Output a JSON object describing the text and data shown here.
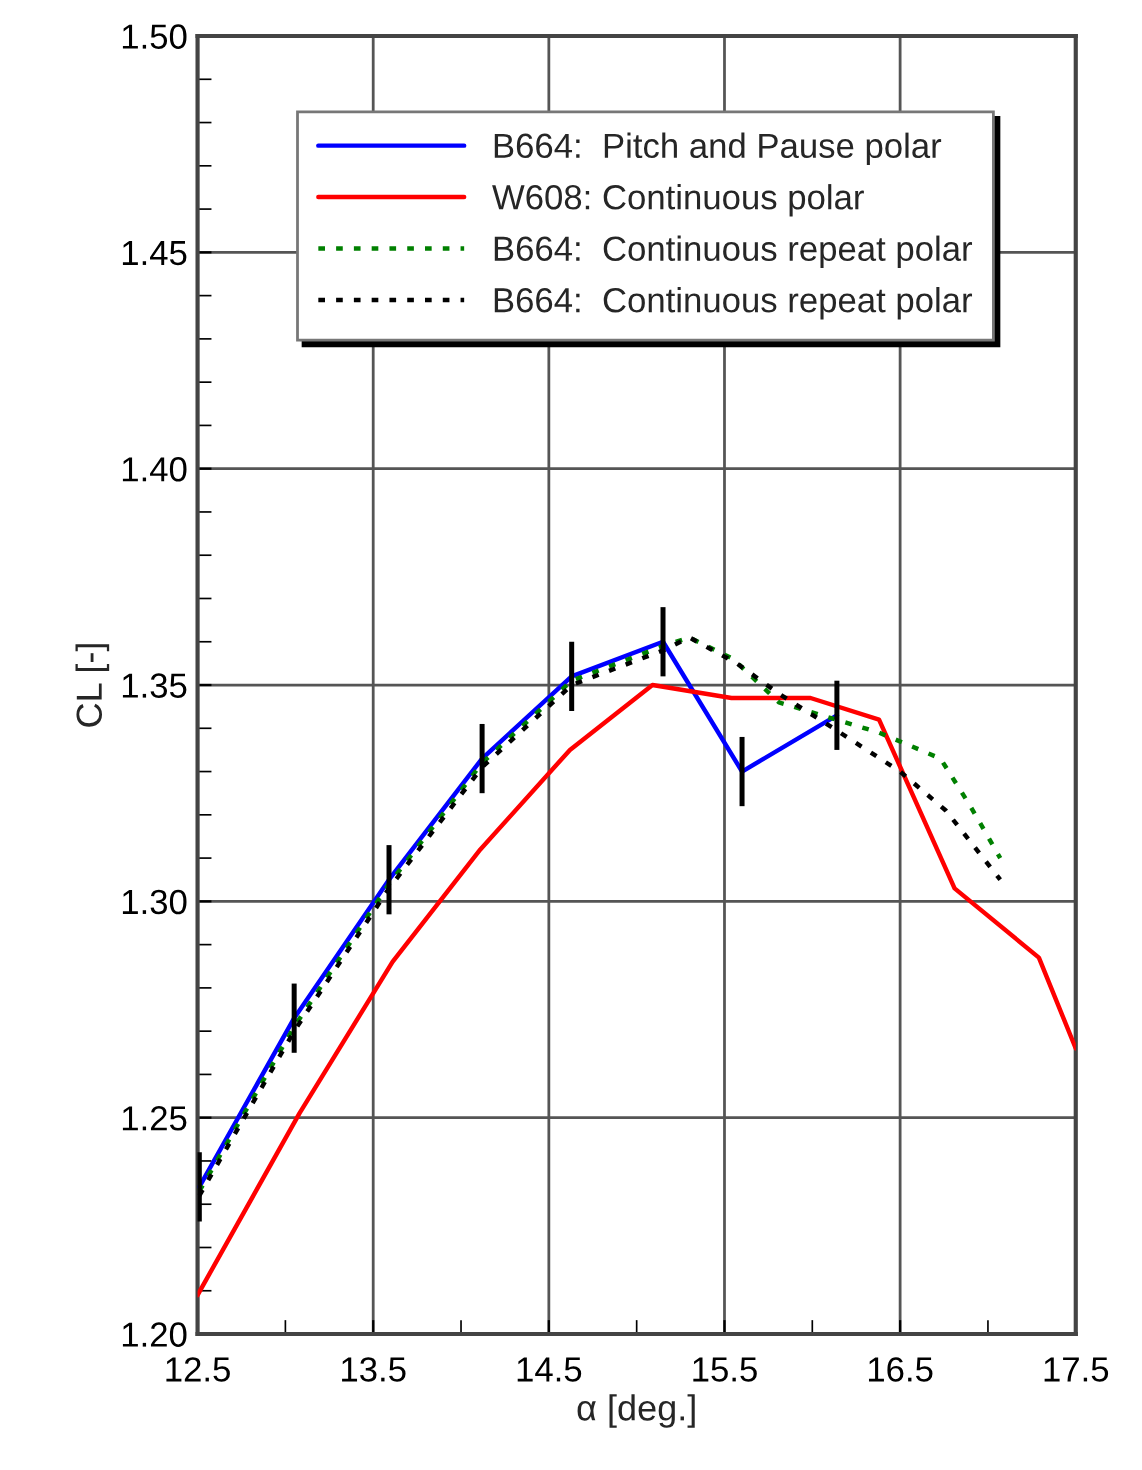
{
  "chart_data": {
    "type": "line",
    "xlabel": "α [deg.]",
    "ylabel": "CL [-]",
    "xlim": [
      12.5,
      17.5
    ],
    "ylim": [
      1.2,
      1.5
    ],
    "xticks": [
      12.5,
      {
        "value": 13.0,
        "label": null
      },
      13.5,
      {
        "value": 14.0,
        "label": null
      },
      14.5,
      {
        "value": 15.0,
        "label": null
      },
      15.5,
      {
        "value": 16.0,
        "label": null
      },
      16.5,
      {
        "value": 17.0,
        "label": null
      },
      17.5
    ],
    "yticks": [
      {
        "value": 1.2,
        "label": "1.20"
      },
      {
        "value": 1.21,
        "label": null
      },
      {
        "value": 1.22,
        "label": null
      },
      {
        "value": 1.23,
        "label": null
      },
      {
        "value": 1.24,
        "label": null
      },
      {
        "value": 1.25,
        "label": "1.25"
      },
      {
        "value": 1.26,
        "label": null
      },
      {
        "value": 1.27,
        "label": null
      },
      {
        "value": 1.28,
        "label": null
      },
      {
        "value": 1.29,
        "label": null
      },
      {
        "value": 1.3,
        "label": "1.30"
      },
      {
        "value": 1.31,
        "label": null
      },
      {
        "value": 1.32,
        "label": null
      },
      {
        "value": 1.33,
        "label": null
      },
      {
        "value": 1.34,
        "label": null
      },
      {
        "value": 1.35,
        "label": "1.35"
      },
      {
        "value": 1.36,
        "label": null
      },
      {
        "value": 1.37,
        "label": null
      },
      {
        "value": 1.38,
        "label": null
      },
      {
        "value": 1.39,
        "label": null
      },
      {
        "value": 1.4,
        "label": "1.40"
      },
      {
        "value": 1.41,
        "label": null
      },
      {
        "value": 1.42,
        "label": null
      },
      {
        "value": 1.43,
        "label": null
      },
      {
        "value": 1.44,
        "label": null
      },
      {
        "value": 1.45,
        "label": "1.45"
      },
      {
        "value": 1.46,
        "label": null
      },
      {
        "value": 1.47,
        "label": null
      },
      {
        "value": 1.48,
        "label": null
      },
      {
        "value": 1.49,
        "label": null
      },
      {
        "value": 1.5,
        "label": "1.50"
      }
    ],
    "grid": true,
    "legend": "top",
    "line_style": "solid",
    "marker": "none",
    "series": [
      {
        "name": "B664:  Pitch and Pause polar",
        "color": "#0000ff",
        "x": [
          12.51,
          13.05,
          13.59,
          14.12,
          14.63,
          15.15,
          15.6,
          16.14
        ],
        "values": [
          1.234,
          1.273,
          1.305,
          1.333,
          1.352,
          1.36,
          1.33,
          1.343
        ],
        "errors": [
          0.008,
          0.008,
          0.008,
          0.008,
          0.008,
          0.008,
          0.008,
          0.008
        ]
      },
      {
        "name": "W608: Continuous polar",
        "color": "#ff0000",
        "x": [
          12.5,
          13.08,
          13.61,
          14.11,
          14.62,
          15.09,
          15.54,
          15.99,
          16.38,
          16.81,
          17.29,
          17.5
        ],
        "values": [
          1.209,
          1.251,
          1.286,
          1.312,
          1.335,
          1.35,
          1.347,
          1.347,
          1.342,
          1.303,
          1.287,
          1.266
        ]
      },
      {
        "name": "B664:  Continuous repeat polar",
        "color": "#008000",
        "line_style": "dotted",
        "x": [
          12.51,
          13.05,
          13.59,
          14.12,
          14.63,
          15.15,
          15.3,
          15.55,
          15.81,
          16.38,
          16.73,
          16.9,
          17.07
        ],
        "values": [
          1.233,
          1.271,
          1.304,
          1.332,
          1.351,
          1.359,
          1.361,
          1.356,
          1.346,
          1.339,
          1.333,
          1.322,
          1.31
        ]
      },
      {
        "name": "B664:  Continuous repeat polar",
        "color": "#000000",
        "line_style": "dotted",
        "x": [
          12.51,
          13.05,
          13.59,
          14.12,
          14.63,
          15.15,
          15.3,
          15.57,
          15.81,
          16.12,
          16.5,
          16.76,
          17.07
        ],
        "values": [
          1.232,
          1.27,
          1.303,
          1.331,
          1.35,
          1.358,
          1.361,
          1.355,
          1.348,
          1.34,
          1.33,
          1.321,
          1.305
        ]
      }
    ]
  }
}
